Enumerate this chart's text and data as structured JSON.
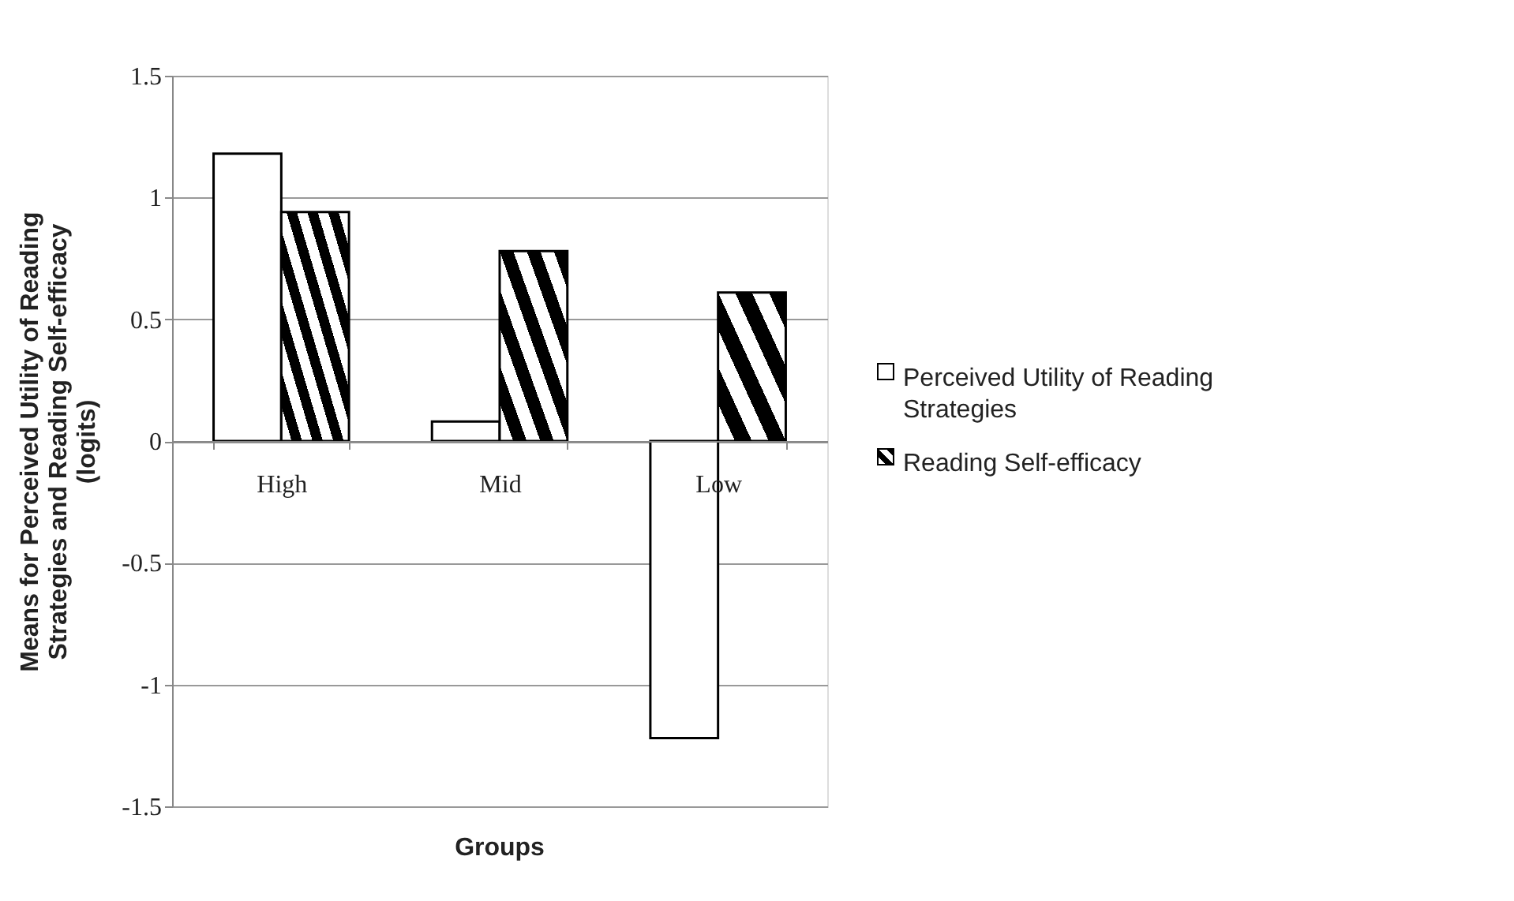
{
  "chart_data": {
    "type": "bar",
    "xlabel": "Groups",
    "ylabel": "Means for Perceived Utility of Reading Strategies and Reading Self-efficacy (logits)",
    "categories": [
      "High",
      "Mid",
      "Low"
    ],
    "series": [
      {
        "name": "Perceived Utility of Reading Strategies",
        "color": "#ffffff",
        "values": [
          1.18,
          0.08,
          -1.22
        ]
      },
      {
        "name": "Reading Self-efficacy",
        "color": "#000000",
        "values": [
          0.94,
          0.78,
          0.61
        ]
      }
    ],
    "ylim": [
      -1.5,
      1.5
    ],
    "yticks": [
      -1.5,
      -1,
      -0.5,
      0,
      0.5,
      1,
      1.5
    ],
    "grid": "y",
    "legend": "right"
  }
}
